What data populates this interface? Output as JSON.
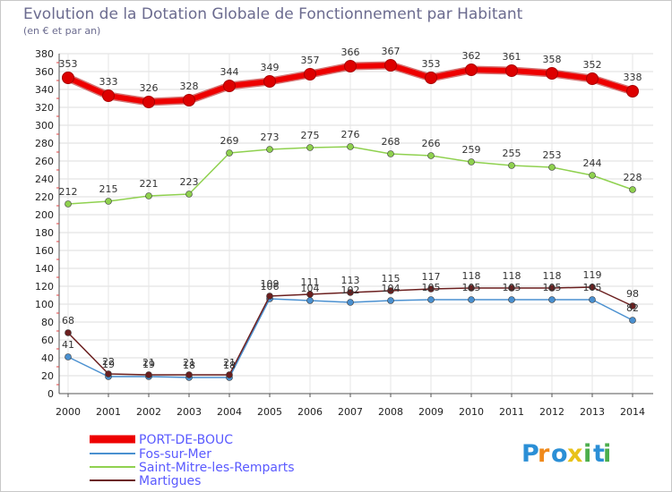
{
  "chart_data": {
    "type": "line",
    "title": "Evolution de la Dotation Globale de Fonctionnement par Habitant",
    "subtitle": "(en € et par an)",
    "xlabel": "",
    "ylabel": "",
    "x": [
      "2000",
      "2001",
      "2002",
      "2003",
      "2004",
      "2005",
      "2006",
      "2007",
      "2008",
      "2009",
      "2010",
      "2011",
      "2012",
      "2013",
      "2014"
    ],
    "ylim": [
      0,
      380
    ],
    "yticks": [
      0,
      20,
      40,
      60,
      80,
      100,
      120,
      140,
      160,
      180,
      200,
      220,
      240,
      260,
      280,
      300,
      320,
      340,
      360,
      380
    ],
    "grid": true,
    "legend": "bottom-left",
    "series": [
      {
        "name": "PORT-DE-BOUC",
        "color": "#ee0000",
        "values": [
          353,
          333,
          326,
          328,
          344,
          349,
          357,
          366,
          367,
          353,
          362,
          361,
          358,
          352,
          338
        ]
      },
      {
        "name": "Fos-sur-Mer",
        "color": "#4a90d0",
        "values": [
          41,
          19,
          19,
          18,
          18,
          106,
          104,
          102,
          104,
          105,
          105,
          105,
          105,
          105,
          82
        ]
      },
      {
        "name": "Saint-Mitre-les-Remparts",
        "color": "#8fd14f",
        "values": [
          212,
          215,
          221,
          223,
          269,
          273,
          275,
          276,
          268,
          266,
          259,
          255,
          253,
          244,
          228
        ]
      },
      {
        "name": "Martigues",
        "color": "#6b1f1f",
        "values": [
          68,
          22,
          21,
          21,
          21,
          109,
          111,
          113,
          115,
          117,
          118,
          118,
          118,
          119,
          98
        ]
      }
    ]
  },
  "logo": {
    "letters": [
      "P",
      "r",
      "o",
      "x",
      "i",
      "t",
      "i"
    ]
  }
}
